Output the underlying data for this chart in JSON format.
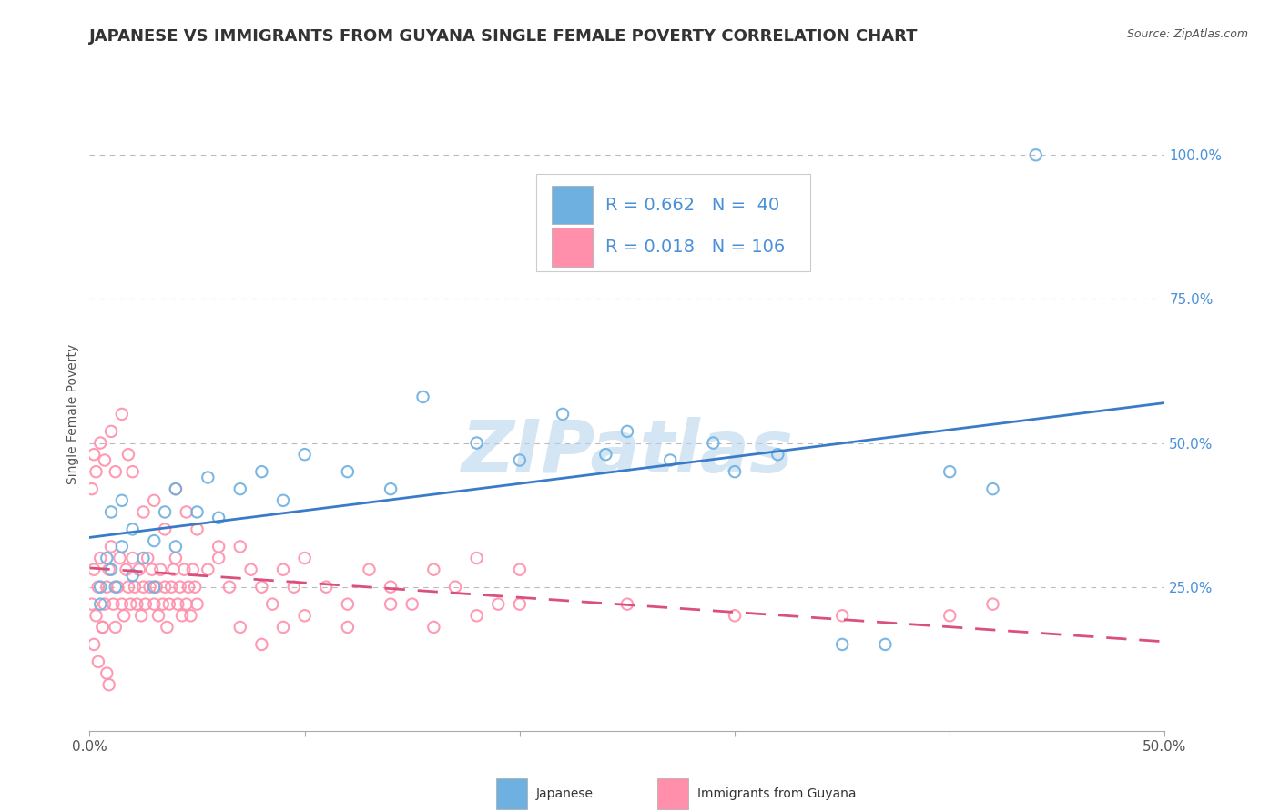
{
  "title": "JAPANESE VS IMMIGRANTS FROM GUYANA SINGLE FEMALE POVERTY CORRELATION CHART",
  "source_text": "Source: ZipAtlas.com",
  "ylabel": "Single Female Poverty",
  "watermark": "ZIPatlas",
  "xlim": [
    0.0,
    0.5
  ],
  "ylim": [
    0.0,
    1.1
  ],
  "ytick_positions": [
    0.25,
    0.5,
    0.75,
    1.0
  ],
  "ytick_labels": [
    "25.0%",
    "50.0%",
    "75.0%",
    "100.0%"
  ],
  "legend_r1": "R = 0.662",
  "legend_n1": "N =  40",
  "legend_r2": "R = 0.018",
  "legend_n2": "N = 106",
  "legend_label1": "Japanese",
  "legend_label2": "Immigrants from Guyana",
  "blue_color": "#6EB0E0",
  "pink_color": "#FF8FAB",
  "trend_blue": "#3A7BC8",
  "trend_pink": "#D94F7E",
  "title_color": "#333333",
  "source_color": "#555555",
  "tick_color": "#4A90D9",
  "grid_color": "#BBBBBB",
  "background_color": "#FFFFFF",
  "watermark_color": "#B8D4EE",
  "title_fontsize": 13,
  "axis_label_fontsize": 10,
  "tick_fontsize": 11,
  "legend_fontsize": 14,
  "jap_x": [
    0.005,
    0.008,
    0.01,
    0.01,
    0.012,
    0.015,
    0.015,
    0.02,
    0.02,
    0.025,
    0.03,
    0.03,
    0.035,
    0.04,
    0.04,
    0.05,
    0.055,
    0.06,
    0.07,
    0.08,
    0.09,
    0.1,
    0.12,
    0.14,
    0.155,
    0.18,
    0.2,
    0.22,
    0.24,
    0.25,
    0.27,
    0.29,
    0.3,
    0.32,
    0.35,
    0.37,
    0.4,
    0.42,
    0.44,
    0.005
  ],
  "jap_y": [
    0.22,
    0.3,
    0.28,
    0.38,
    0.25,
    0.32,
    0.4,
    0.35,
    0.27,
    0.3,
    0.33,
    0.25,
    0.38,
    0.32,
    0.42,
    0.38,
    0.44,
    0.37,
    0.42,
    0.45,
    0.4,
    0.48,
    0.45,
    0.42,
    0.58,
    0.5,
    0.47,
    0.55,
    0.48,
    0.52,
    0.47,
    0.5,
    0.45,
    0.48,
    0.15,
    0.15,
    0.45,
    0.42,
    1.0,
    0.25
  ],
  "guy_x": [
    0.001,
    0.002,
    0.003,
    0.004,
    0.005,
    0.006,
    0.007,
    0.008,
    0.009,
    0.01,
    0.011,
    0.012,
    0.013,
    0.014,
    0.015,
    0.016,
    0.017,
    0.018,
    0.019,
    0.02,
    0.021,
    0.022,
    0.023,
    0.024,
    0.025,
    0.026,
    0.027,
    0.028,
    0.029,
    0.03,
    0.031,
    0.032,
    0.033,
    0.034,
    0.035,
    0.036,
    0.037,
    0.038,
    0.039,
    0.04,
    0.041,
    0.042,
    0.043,
    0.044,
    0.045,
    0.046,
    0.047,
    0.048,
    0.049,
    0.05,
    0.055,
    0.06,
    0.065,
    0.07,
    0.075,
    0.08,
    0.085,
    0.09,
    0.095,
    0.1,
    0.11,
    0.12,
    0.13,
    0.14,
    0.15,
    0.16,
    0.17,
    0.18,
    0.19,
    0.2,
    0.001,
    0.002,
    0.003,
    0.005,
    0.007,
    0.01,
    0.012,
    0.015,
    0.018,
    0.02,
    0.025,
    0.03,
    0.035,
    0.04,
    0.045,
    0.05,
    0.06,
    0.07,
    0.08,
    0.09,
    0.1,
    0.12,
    0.14,
    0.16,
    0.18,
    0.2,
    0.25,
    0.3,
    0.35,
    0.4,
    0.42,
    0.002,
    0.004,
    0.006,
    0.008,
    0.009
  ],
  "guy_y": [
    0.22,
    0.28,
    0.2,
    0.25,
    0.3,
    0.18,
    0.22,
    0.25,
    0.28,
    0.32,
    0.22,
    0.18,
    0.25,
    0.3,
    0.22,
    0.2,
    0.28,
    0.25,
    0.22,
    0.3,
    0.25,
    0.22,
    0.28,
    0.2,
    0.25,
    0.22,
    0.3,
    0.25,
    0.28,
    0.22,
    0.25,
    0.2,
    0.28,
    0.22,
    0.25,
    0.18,
    0.22,
    0.25,
    0.28,
    0.3,
    0.22,
    0.25,
    0.2,
    0.28,
    0.22,
    0.25,
    0.2,
    0.28,
    0.25,
    0.22,
    0.28,
    0.3,
    0.25,
    0.32,
    0.28,
    0.25,
    0.22,
    0.28,
    0.25,
    0.3,
    0.25,
    0.22,
    0.28,
    0.25,
    0.22,
    0.28,
    0.25,
    0.3,
    0.22,
    0.28,
    0.42,
    0.48,
    0.45,
    0.5,
    0.47,
    0.52,
    0.45,
    0.55,
    0.48,
    0.45,
    0.38,
    0.4,
    0.35,
    0.42,
    0.38,
    0.35,
    0.32,
    0.18,
    0.15,
    0.18,
    0.2,
    0.18,
    0.22,
    0.18,
    0.2,
    0.22,
    0.22,
    0.2,
    0.2,
    0.2,
    0.22,
    0.15,
    0.12,
    0.18,
    0.1,
    0.08
  ]
}
